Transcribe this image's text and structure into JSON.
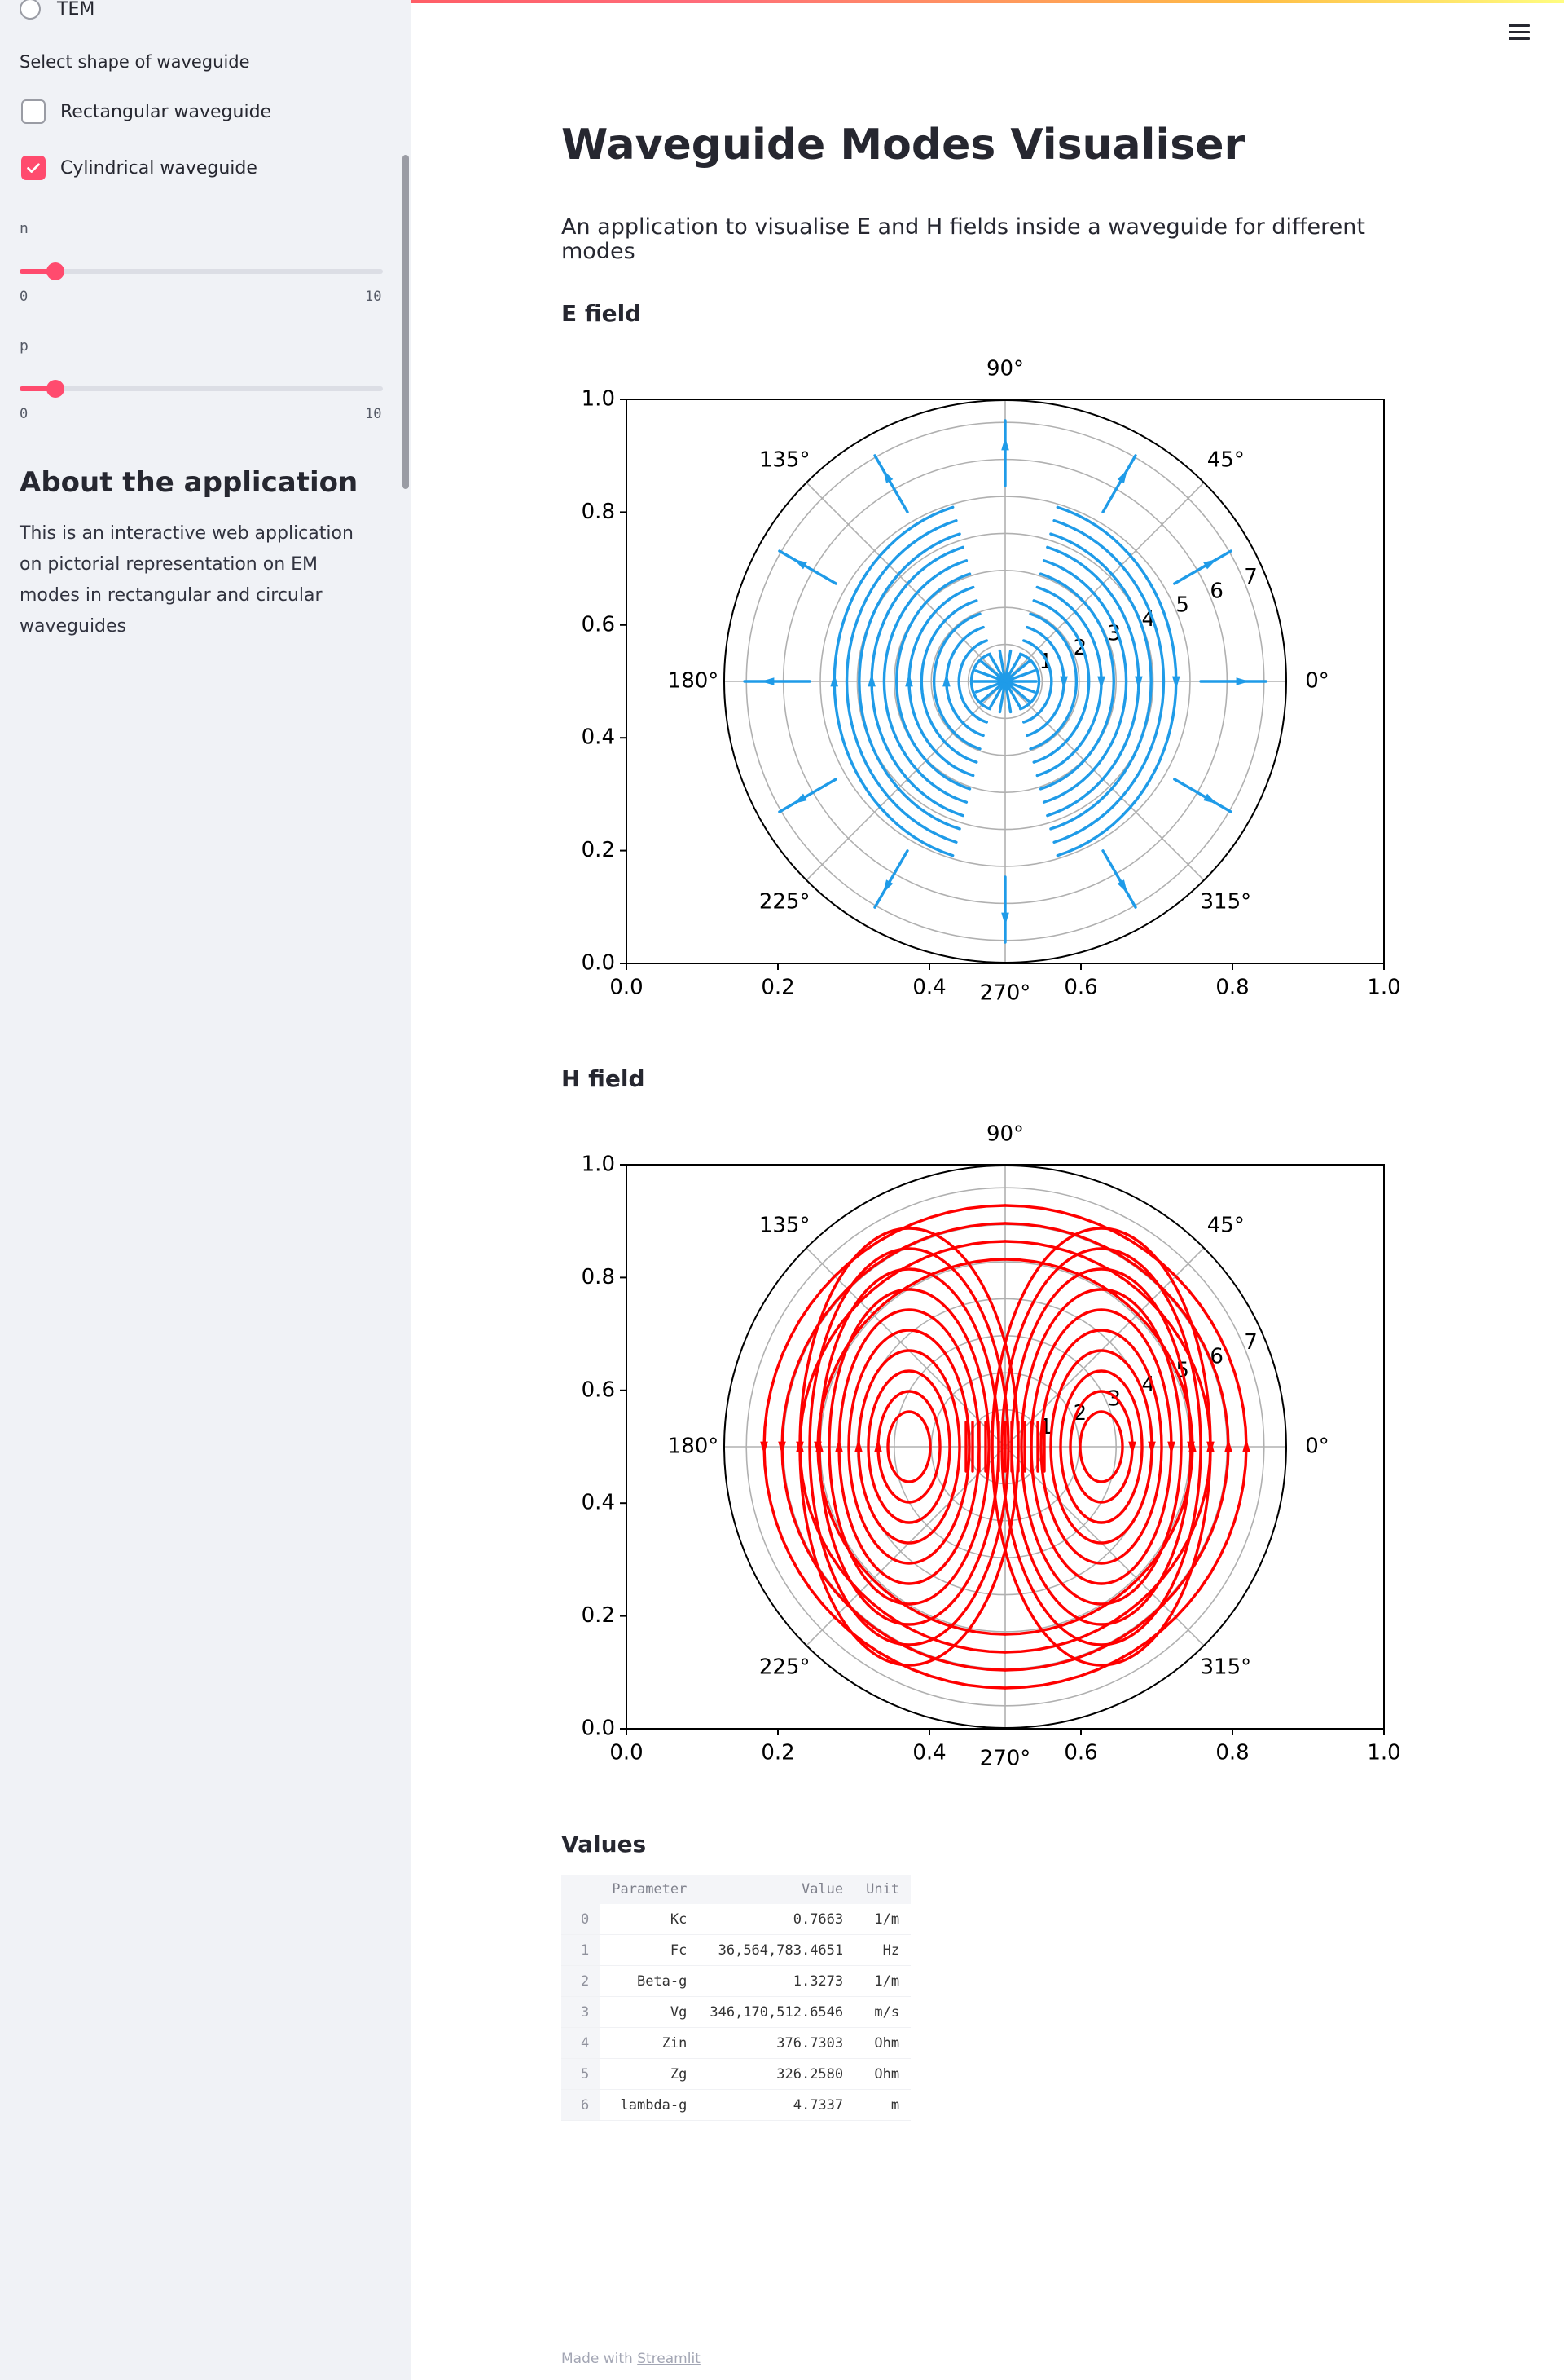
{
  "sidebar": {
    "mode_option": "TEM",
    "shape_label": "Select shape of waveguide",
    "shape_options": [
      {
        "label": "Rectangular waveguide",
        "checked": false
      },
      {
        "label": "Cylindrical waveguide",
        "checked": true
      }
    ],
    "sliders": [
      {
        "label": "n",
        "value": 1,
        "min": "0",
        "max": "10"
      },
      {
        "label": "p",
        "value": 1,
        "min": "0",
        "max": "10"
      }
    ],
    "about_title": "About the application",
    "about_text": "This is an interactive web application on pictorial representation on EM modes in rectangular and circular waveguides"
  },
  "menu_icon": "hamburger-menu-icon",
  "main": {
    "title": "Waveguide Modes Visualiser",
    "subtitle": "An application to visualise E and H fields inside a waveguide for different modes",
    "e_heading": "E field",
    "h_heading": "H field",
    "values_heading": "Values"
  },
  "chart_data": [
    {
      "type": "polar streamplot",
      "title": "",
      "field": "E",
      "color": "#1f9be8",
      "cartesian_x_ticks": [
        "0.0",
        "0.2",
        "0.4",
        "0.6",
        "0.8",
        "1.0"
      ],
      "cartesian_y_ticks": [
        "0.0",
        "0.2",
        "0.4",
        "0.6",
        "0.8",
        "1.0"
      ],
      "angle_ticks": [
        "0°",
        "45°",
        "90°",
        "135°",
        "180°",
        "225°",
        "270°",
        "315°"
      ],
      "radial_ticks": [
        "1",
        "2",
        "3",
        "4",
        "5",
        "6",
        "7"
      ],
      "rmax": 7.6,
      "grid": true
    },
    {
      "type": "polar streamplot",
      "title": "",
      "field": "H",
      "color": "#ff0000",
      "cartesian_x_ticks": [
        "0.0",
        "0.2",
        "0.4",
        "0.6",
        "0.8",
        "1.0"
      ],
      "cartesian_y_ticks": [
        "0.0",
        "0.2",
        "0.4",
        "0.6",
        "0.8",
        "1.0"
      ],
      "angle_ticks": [
        "0°",
        "45°",
        "90°",
        "135°",
        "180°",
        "225°",
        "270°",
        "315°"
      ],
      "radial_ticks": [
        "1",
        "2",
        "3",
        "4",
        "5",
        "6",
        "7"
      ],
      "rmax": 7.6,
      "grid": true
    }
  ],
  "table": {
    "columns": [
      "",
      "Parameter",
      "Value",
      "Unit"
    ],
    "rows": [
      [
        "0",
        "Kc",
        "0.7663",
        "1/m"
      ],
      [
        "1",
        "Fc",
        "36,564,783.4651",
        "Hz"
      ],
      [
        "2",
        "Beta-g",
        "1.3273",
        "1/m"
      ],
      [
        "3",
        "Vg",
        "346,170,512.6546",
        "m/s"
      ],
      [
        "4",
        "Zin",
        "376.7303",
        "Ohm"
      ],
      [
        "5",
        "Zg",
        "326.2580",
        "Ohm"
      ],
      [
        "6",
        "lambda-g",
        "4.7337",
        "m"
      ]
    ]
  },
  "footer": {
    "prefix": "Made with",
    "link": "Streamlit"
  }
}
